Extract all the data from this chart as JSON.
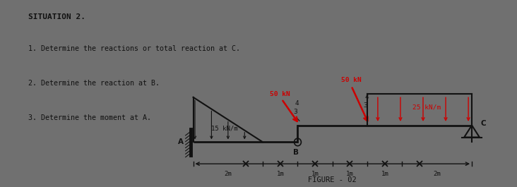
{
  "title": "SITUATION 2.",
  "questions": [
    "1. Determine the reactions or total reaction at C.",
    "2. Determine the reaction at B.",
    "3. Determine the moment at A."
  ],
  "figure_label": "FIGURE - 02",
  "bg_diagram": "#d8e8d8",
  "bg_outer": "#707070",
  "bg_text": "#d0ccc0",
  "beam_color": "#111111",
  "load_color": "#cc0000",
  "text_color": "#111111",
  "span_labels": [
    "2m",
    "1m",
    "1m",
    "1m",
    "1m",
    "2m"
  ]
}
